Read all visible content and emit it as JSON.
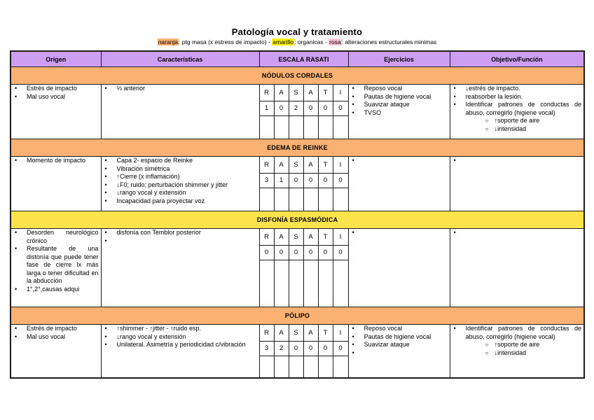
{
  "title": "Patología vocal y tratamiento",
  "legend": {
    "naranja_label": "naranja",
    "naranja_text": ": ptg masa (x estress de impacto) - ",
    "amarillo_label": "amarillo",
    "amarillo_text": ": organicas - ",
    "rosa_label": "rosa",
    "rosa_text": ": alteraciones estructurales minimas"
  },
  "colors": {
    "header_bg": "#CE9EF2",
    "orange_band": "#FBB171",
    "yellow_band": "#FFE34D",
    "naranja_highlight": "#FBB171",
    "amarillo_highlight": "#FFF200",
    "rosa_highlight": "#FFC4D6",
    "border": "#1c1c1c"
  },
  "table": {
    "headers": [
      "Origen",
      "Características",
      "ESCALA RASATI",
      "Ejercicios",
      "Objetivo/Función"
    ],
    "rasati_letters": [
      "R",
      "A",
      "S",
      "A",
      "T",
      "I"
    ],
    "sections": [
      {
        "band": "NÓDULOS CORDALES",
        "band_color": "orange",
        "origen": [
          "Estrés de impacto",
          "Mal uso vocal"
        ],
        "caracteristicas": [
          "⅓ anterior"
        ],
        "rasati": [
          "1",
          "0",
          "2",
          "0",
          "0",
          "0"
        ],
        "ejercicios": [
          "Reposo vocal",
          "Pautas de higiene vocal",
          "Suavizar ataque",
          "TVSO"
        ],
        "objetivo": [
          {
            "text": "↓estrés de impacto.",
            "sub": []
          },
          {
            "text": "reabsorber la lesión.",
            "sub": []
          },
          {
            "text": "Identificar patrones de conductas de abuso, corregirlo (higiene vocal)",
            "sub": [
              "↑soporte de aire",
              "↓intensidad"
            ]
          }
        ]
      },
      {
        "band": "EDEMA DE REINKE",
        "band_color": "orange",
        "origen": [
          "Momento de impacto"
        ],
        "caracteristicas": [
          "Capa 2- espacio de Reinke",
          "Vibración simétrica",
          "↑Cierre (x inflamación)",
          "↓F0; ruido; perturbación shimmer y jitter",
          "↓rango vocal y extensión",
          "Incapacidad para proyectar voz"
        ],
        "rasati": [
          "3",
          "1",
          "0",
          "0",
          "0",
          "0"
        ],
        "ejercicios": [
          ""
        ],
        "objetivo": [
          {
            "text": "",
            "sub": []
          }
        ]
      },
      {
        "band": "DISFONÍA ESPASMÓDICA",
        "band_color": "yellow",
        "origen": [
          "Desorden neurológico crónico",
          "Resultante de una distonía que puede tener fase de cierre lx más larga o tener dificultad en la abducción",
          "1°,2°,causas adqui"
        ],
        "caracteristicas": [
          "disfonía con Temblor posterior",
          ""
        ],
        "rasati": [
          "0",
          "0",
          "0",
          "0",
          "0",
          "0"
        ],
        "ejercicios": [
          ""
        ],
        "objetivo": [
          {
            "text": "",
            "sub": []
          }
        ]
      },
      {
        "band": "PÓLIPO",
        "band_color": "orange",
        "origen": [
          "Estrés de impacto",
          "Mal uso vocal"
        ],
        "caracteristicas": [
          "↑shimmer -  ↑jitter - ↑ruido esp.",
          "↓rango vocal y extensión",
          "Unilateral. Asimetría y periodicidad c/vibración"
        ],
        "rasati": [
          "3",
          "2",
          "0",
          "0",
          "0",
          "0"
        ],
        "ejercicios": [
          "Reposo vocal",
          "Pautas de higiene vocal",
          "Suavizar ataque",
          ""
        ],
        "objetivo": [
          {
            "text": "Identificar patrones de conductas de abuso, corregirlo (higiene vocal)",
            "sub": [
              "↑soporte de aire",
              "↓intensidad"
            ]
          }
        ]
      }
    ]
  }
}
